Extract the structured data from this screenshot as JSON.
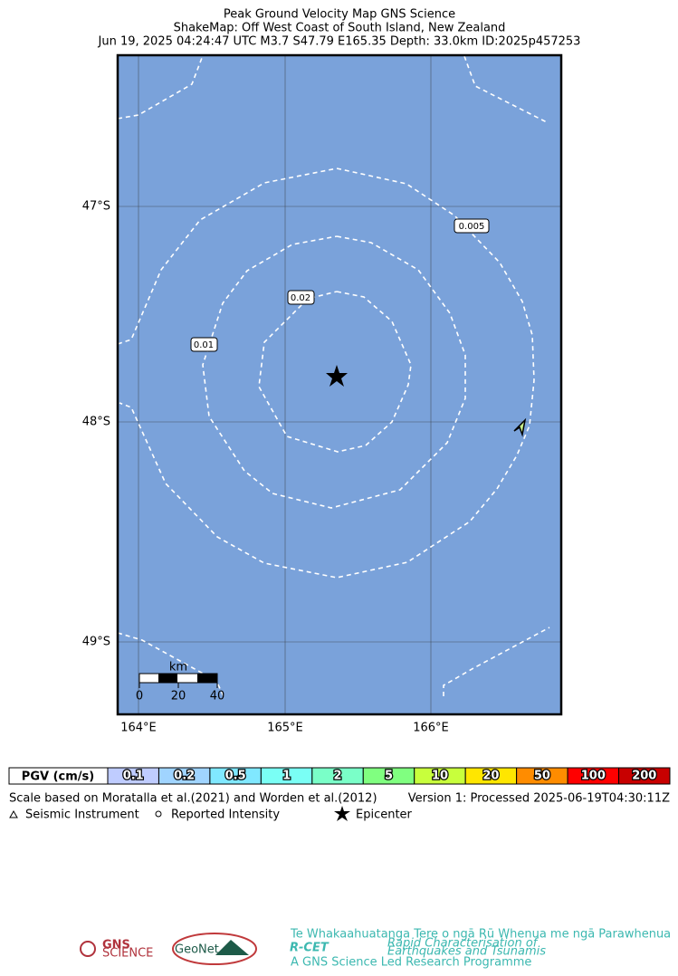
{
  "header": {
    "title": "Peak Ground Velocity Map GNS Science",
    "subtitle": "ShakeMap: Off West Coast of South Island, New Zealand",
    "event": "Jun 19, 2025 04:24:47 UTC M3.7 S47.79 E165.35 Depth: 33.0km ID:2025p457253"
  },
  "map": {
    "lat_labels": [
      "47°S",
      "48°S",
      "49°S"
    ],
    "lon_labels": [
      "164°E",
      "165°E",
      "166°E"
    ],
    "contour_labels": [
      "0.005",
      "0.02",
      "0.01"
    ],
    "scale_bar": {
      "unit": "km",
      "ticks": [
        "0",
        "20",
        "40"
      ]
    }
  },
  "colorbar": {
    "title": "PGV (cm/s)",
    "levels": [
      "0.1",
      "0.2",
      "0.5",
      "1",
      "2",
      "5",
      "10",
      "20",
      "50",
      "100",
      "200"
    ],
    "colors": [
      "#bfccff",
      "#a0d4ff",
      "#80e8ff",
      "#7afff5",
      "#7affc8",
      "#80ff80",
      "#c8ff3c",
      "#ffe600",
      "#ff8c00",
      "#ff0000",
      "#c80000"
    ]
  },
  "footer": {
    "scale_note": "Scale based on Moratalla et al.(2021) and Worden et al.(2012)",
    "version": "Version 1: Processed 2025-06-19T04:30:11Z",
    "legend": [
      "Seismic Instrument",
      "Reported Intensity",
      "Epicenter"
    ]
  },
  "logos": {
    "gns": "GNS",
    "gns_sub": "SCIENCE",
    "geonet": "GeoNet",
    "rcet": "R-CET",
    "rcet_top": "Te Whakaahuatanga Tere o ngā Rū Whenua me ngā Parawhenua",
    "rcet_sub1": "Rapid Characterisation of",
    "rcet_sub2": "Earthquakes and Tsunamis",
    "rcet_foot": "A GNS Science Led Research Programme"
  }
}
